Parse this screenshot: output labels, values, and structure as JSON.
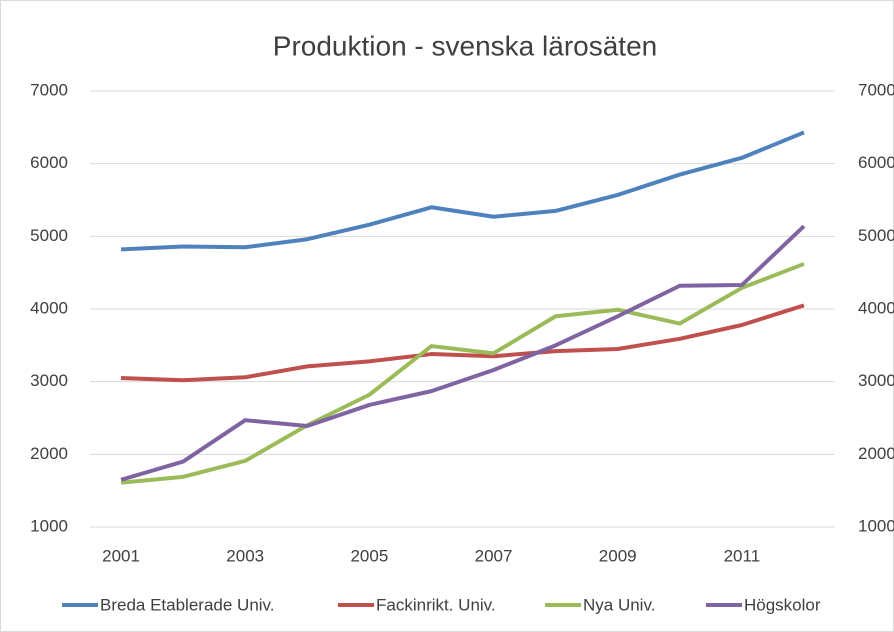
{
  "chart_data": {
    "type": "line",
    "title": "Produktion - svenska lärosäten",
    "x": [
      2001,
      2002,
      2003,
      2004,
      2005,
      2006,
      2007,
      2008,
      2009,
      2010,
      2011,
      2012
    ],
    "xlim": [
      2000.5,
      2012.5
    ],
    "xticks": [
      2001,
      2003,
      2005,
      2007,
      2009,
      2011
    ],
    "ylim": [
      1000,
      7000
    ],
    "yticks": [
      1000,
      2000,
      3000,
      4000,
      5000,
      6000,
      7000
    ],
    "grid": true,
    "legend": "bottom",
    "series": [
      {
        "name": "Breda Etablerade Univ.",
        "color": "#4f81bd",
        "values": [
          4820,
          4860,
          4850,
          4960,
          5160,
          5400,
          5270,
          5350,
          5570,
          5850,
          6080,
          6430
        ]
      },
      {
        "name": "Fackinrikt. Univ.",
        "color": "#c0504d",
        "values": [
          3050,
          3020,
          3060,
          3210,
          3280,
          3380,
          3350,
          3420,
          3450,
          3590,
          3780,
          4050
        ]
      },
      {
        "name": "Nya Univ.",
        "color": "#9bbb59",
        "values": [
          1610,
          1690,
          1910,
          2400,
          2820,
          3490,
          3390,
          3900,
          3990,
          3800,
          4290,
          4620
        ]
      },
      {
        "name": "Högskolor",
        "color": "#8064a2",
        "values": [
          1650,
          1900,
          2470,
          2390,
          2680,
          2870,
          3160,
          3500,
          3900,
          4320,
          4330,
          5140
        ]
      }
    ]
  }
}
